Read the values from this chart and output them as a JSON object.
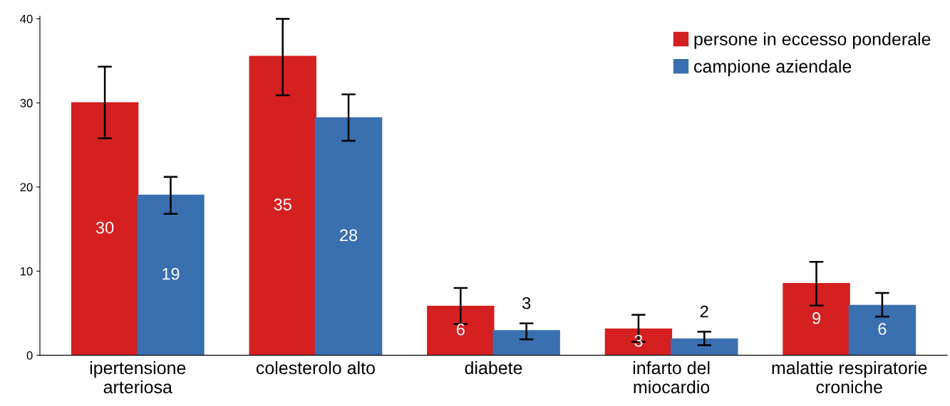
{
  "chart_data": {
    "type": "bar",
    "categories": [
      "ipertensione\narteriosa",
      "colesterolo alto",
      "diabete",
      "infarto del\nmiocardio",
      "malattie respiratorie\ncroniche"
    ],
    "series": [
      {
        "name": "persone in eccesso ponderale",
        "color": "#d42020",
        "values": [
          30.0,
          35.5,
          5.8,
          3.1,
          8.5
        ],
        "errors": [
          [
            25.8,
            34.3
          ],
          [
            30.9,
            40.0
          ],
          [
            3.7,
            8.0
          ],
          [
            1.6,
            4.8
          ],
          [
            5.9,
            11.1
          ]
        ],
        "value_labels": [
          "30",
          "35",
          "6",
          "3",
          "9"
        ]
      },
      {
        "name": "campione aziendale",
        "color": "#3a6fb0",
        "values": [
          19.0,
          28.2,
          2.9,
          1.9,
          5.9
        ],
        "errors": [
          [
            16.8,
            21.2
          ],
          [
            25.5,
            31.0
          ],
          [
            1.9,
            3.8
          ],
          [
            1.2,
            2.8
          ],
          [
            4.6,
            7.4
          ]
        ],
        "value_labels": [
          "19",
          "28",
          "3",
          "2",
          "6"
        ]
      }
    ],
    "ylim": [
      0,
      40.3
    ],
    "yticks": [
      0,
      10,
      20,
      30,
      40
    ],
    "grid": false,
    "legend": "top right"
  }
}
